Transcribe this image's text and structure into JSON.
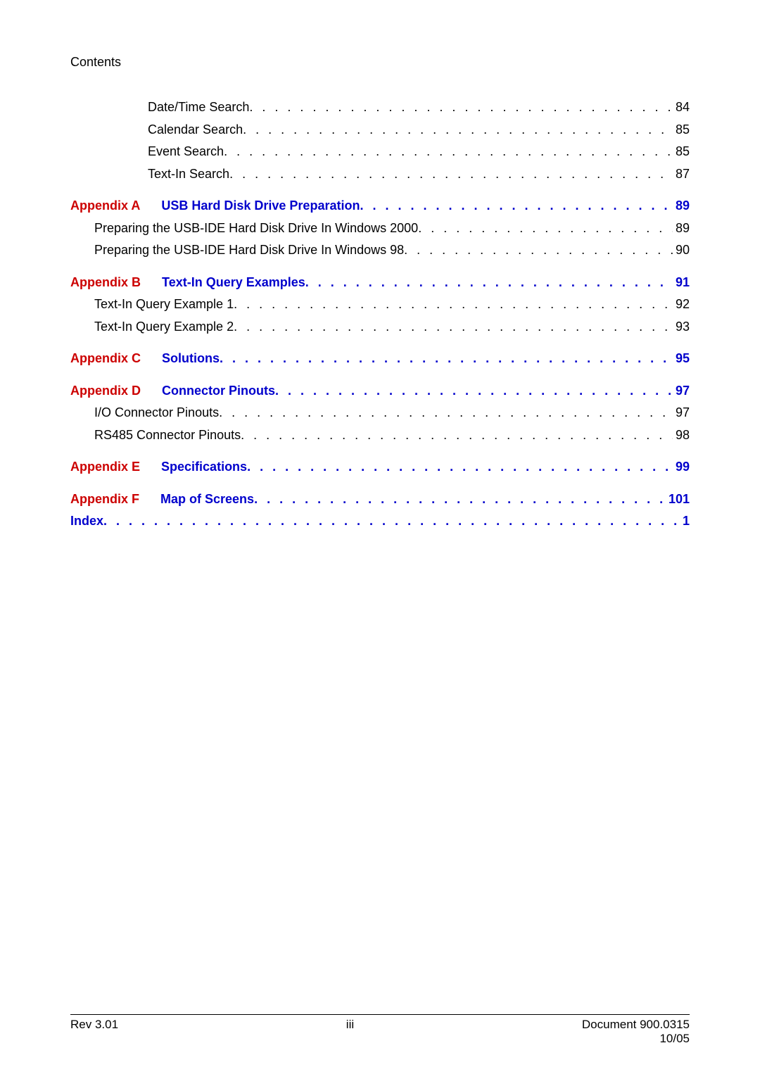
{
  "header": "Contents",
  "lines": [
    {
      "indent": "lvl2",
      "label": "Date/Time Search",
      "page": "84",
      "blue": false
    },
    {
      "indent": "lvl2",
      "label": "Calendar Search",
      "page": "85",
      "blue": false
    },
    {
      "indent": "lvl2",
      "label": "Event Search",
      "page": "85",
      "blue": false
    },
    {
      "indent": "lvl2",
      "label": "Text-In Search",
      "page": "87",
      "blue": false
    }
  ],
  "appA": {
    "prefix": "Appendix A",
    "title": "USB Hard Disk Drive Preparation",
    "page": "89"
  },
  "appA_sub": [
    {
      "indent": "lvl1",
      "label": "Preparing the USB-IDE Hard Disk Drive In Windows 2000",
      "page": "89"
    },
    {
      "indent": "lvl1",
      "label": "Preparing the USB-IDE Hard Disk Drive In Windows 98",
      "page": "90"
    }
  ],
  "appB": {
    "prefix": "Appendix B",
    "title": "Text-In Query Examples",
    "page": "91"
  },
  "appB_sub": [
    {
      "indent": "lvl1",
      "label": "Text-In Query Example 1",
      "page": "92"
    },
    {
      "indent": "lvl1",
      "label": "Text-In Query Example 2",
      "page": "93"
    }
  ],
  "appC": {
    "prefix": "Appendix C",
    "title": "Solutions",
    "page": "95"
  },
  "appD": {
    "prefix": "Appendix D",
    "title": "Connector Pinouts",
    "page": "97"
  },
  "appD_sub": [
    {
      "indent": "lvl1",
      "label": "I/O Connector Pinouts",
      "page": "97"
    },
    {
      "indent": "lvl1",
      "label": "RS485 Connector Pinouts",
      "page": "98"
    }
  ],
  "appE": {
    "prefix": "Appendix E",
    "title": "Specifications",
    "page": "99"
  },
  "appF": {
    "prefix": "Appendix F",
    "title": "Map of Screens",
    "page": "101"
  },
  "index": {
    "label": "Index",
    "page": "1"
  },
  "footer": {
    "left": "Rev 3.01",
    "center": "iii",
    "right1": "Document 900.0315",
    "right2": "10/05"
  }
}
